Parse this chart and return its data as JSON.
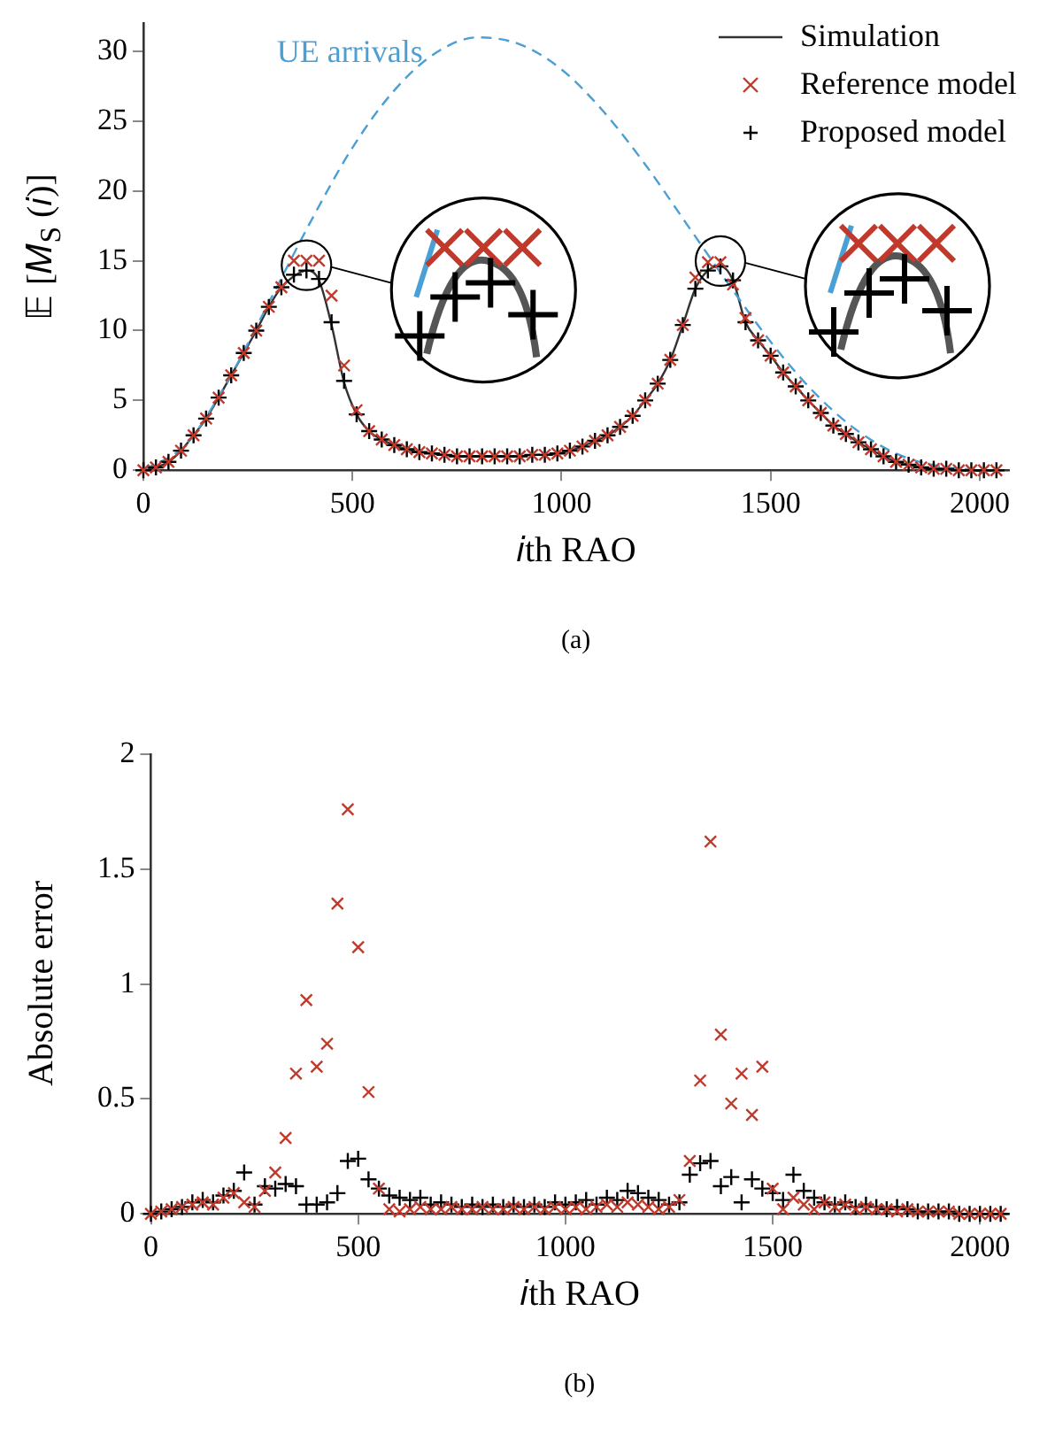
{
  "chart_data": [
    {
      "type": "line",
      "xlabel": "𝑖th RAO",
      "ylabel": "𝔼 [𝑀$_{S}$ (𝑖)]",
      "annotations": [
        "(a)"
      ],
      "x": [
        0,
        30,
        60,
        90,
        120,
        150,
        180,
        210,
        240,
        270,
        300,
        330,
        360,
        390,
        420,
        450,
        480,
        510,
        540,
        570,
        600,
        630,
        660,
        690,
        720,
        750,
        780,
        810,
        840,
        870,
        900,
        930,
        960,
        990,
        1020,
        1050,
        1080,
        1110,
        1140,
        1170,
        1200,
        1230,
        1260,
        1290,
        1320,
        1350,
        1380,
        1410,
        1440,
        1470,
        1500,
        1530,
        1560,
        1590,
        1620,
        1650,
        1680,
        1710,
        1740,
        1770,
        1800,
        1830,
        1860,
        1890,
        1920,
        1950,
        1980,
        2010,
        2040
      ],
      "series": [
        {
          "name": "UE arrivals",
          "type": "line",
          "color": "#4a9fd4",
          "line_style": "dashed",
          "x": [
            0,
            100,
            200,
            300,
            400,
            500,
            600,
            700,
            800,
            900,
            1000,
            1100,
            1200,
            1300,
            1400,
            1500,
            1600,
            1700,
            1800,
            1900,
            2000
          ],
          "values": [
            0,
            1.8,
            6.3,
            12.0,
            17.8,
            23.1,
            27.2,
            29.9,
            31.0,
            30.5,
            28.7,
            25.7,
            21.9,
            17.6,
            13.3,
            9.2,
            5.7,
            3.0,
            1.2,
            0.3,
            0
          ]
        },
        {
          "name": "Simulation",
          "type": "line",
          "color": "#333333",
          "line_style": "solid",
          "values": [
            0,
            0.2,
            0.6,
            1.4,
            2.5,
            3.7,
            5.2,
            6.8,
            8.4,
            10.0,
            11.7,
            13.1,
            13.9,
            14.3,
            13.6,
            10.4,
            6.3,
            4.0,
            2.8,
            2.2,
            1.8,
            1.5,
            1.3,
            1.2,
            1.1,
            1.0,
            1.0,
            1.0,
            1.0,
            1.0,
            1.0,
            1.1,
            1.1,
            1.2,
            1.4,
            1.7,
            2.1,
            2.5,
            3.1,
            3.9,
            5.0,
            6.2,
            7.9,
            10.4,
            13.0,
            14.3,
            14.6,
            13.6,
            10.6,
            9.3,
            8.2,
            7.0,
            6.0,
            5.0,
            4.1,
            3.2,
            2.6,
            2.0,
            1.5,
            1.0,
            0.6,
            0.4,
            0.2,
            0.1,
            0.1,
            0,
            0,
            0,
            0
          ]
        },
        {
          "name": "Reference model",
          "type": "scatter",
          "color": "#c0392b",
          "marker": "x",
          "values": [
            0,
            0.2,
            0.6,
            1.4,
            2.5,
            3.7,
            5.2,
            6.8,
            8.4,
            10.0,
            11.7,
            13.1,
            15.0,
            15.0,
            15.0,
            12.5,
            7.5,
            4.3,
            2.8,
            2.2,
            1.8,
            1.5,
            1.3,
            1.2,
            1.1,
            1.0,
            1.0,
            1.0,
            1.0,
            1.0,
            1.0,
            1.1,
            1.1,
            1.2,
            1.4,
            1.7,
            2.1,
            2.5,
            3.1,
            3.9,
            5.0,
            6.2,
            7.9,
            10.4,
            13.8,
            14.9,
            14.9,
            13.3,
            10.9,
            9.3,
            8.2,
            7.0,
            6.0,
            5.0,
            4.1,
            3.2,
            2.6,
            2.0,
            1.5,
            1.0,
            0.6,
            0.4,
            0.2,
            0.1,
            0.1,
            0,
            0,
            0,
            0
          ]
        },
        {
          "name": "Proposed model",
          "type": "scatter",
          "color": "#000000",
          "marker": "cross",
          "values": [
            0,
            0.2,
            0.6,
            1.4,
            2.5,
            3.7,
            5.2,
            6.8,
            8.4,
            10.0,
            11.7,
            13.1,
            14.0,
            14.3,
            13.7,
            10.6,
            6.4,
            4.0,
            2.8,
            2.2,
            1.8,
            1.5,
            1.3,
            1.2,
            1.1,
            1.0,
            1.0,
            1.0,
            1.0,
            1.0,
            1.0,
            1.1,
            1.1,
            1.2,
            1.4,
            1.7,
            2.1,
            2.5,
            3.1,
            3.9,
            5.0,
            6.2,
            7.9,
            10.4,
            13.0,
            14.3,
            14.6,
            13.6,
            10.6,
            9.3,
            8.2,
            7.0,
            6.0,
            5.0,
            4.1,
            3.2,
            2.6,
            2.0,
            1.5,
            1.0,
            0.6,
            0.4,
            0.2,
            0.1,
            0.1,
            0,
            0,
            0,
            0
          ]
        }
      ],
      "xlim": [
        0,
        2070
      ],
      "xticks": [
        0,
        500,
        1000,
        1500,
        2000
      ],
      "ylim": [
        0,
        32
      ],
      "yticks": [
        0,
        5,
        10,
        15,
        20,
        25,
        30
      ],
      "grid": false,
      "legend": "top right"
    },
    {
      "type": "scatter",
      "xlabel": "𝑖th RAO",
      "ylabel": "Absolute error",
      "annotations": [
        "(b)"
      ],
      "x": [
        0,
        25,
        50,
        75,
        100,
        125,
        150,
        175,
        200,
        225,
        250,
        275,
        300,
        325,
        350,
        375,
        400,
        425,
        450,
        475,
        500,
        525,
        550,
        575,
        600,
        625,
        650,
        675,
        700,
        725,
        750,
        775,
        800,
        825,
        850,
        875,
        900,
        925,
        950,
        975,
        1000,
        1025,
        1050,
        1075,
        1100,
        1125,
        1150,
        1175,
        1200,
        1225,
        1250,
        1275,
        1300,
        1325,
        1350,
        1375,
        1400,
        1425,
        1450,
        1475,
        1500,
        1525,
        1550,
        1575,
        1600,
        1625,
        1650,
        1675,
        1700,
        1725,
        1750,
        1775,
        1800,
        1825,
        1850,
        1875,
        1900,
        1925,
        1950,
        1975,
        2000,
        2025,
        2050
      ],
      "series": [
        {
          "color": "#c0392b",
          "marker": "x",
          "values": [
            0,
            0.01,
            0.02,
            0.03,
            0.04,
            0.05,
            0.04,
            0.07,
            0.09,
            0.05,
            0.03,
            0.1,
            0.18,
            0.33,
            0.61,
            0.93,
            0.64,
            0.74,
            1.35,
            1.76,
            1.16,
            0.53,
            0.11,
            0.02,
            0.01,
            0.02,
            0.03,
            0.02,
            0.02,
            0.03,
            0.02,
            0.02,
            0.03,
            0.02,
            0.02,
            0.03,
            0.02,
            0.03,
            0.02,
            0.03,
            0.02,
            0.03,
            0.02,
            0.03,
            0.04,
            0.03,
            0.05,
            0.04,
            0.03,
            0.02,
            0.03,
            0.06,
            0.23,
            0.58,
            1.62,
            0.78,
            0.48,
            0.61,
            0.43,
            0.64,
            0.11,
            0.02,
            0.07,
            0.04,
            0.02,
            0.05,
            0.03,
            0.04,
            0.02,
            0.03,
            0.02,
            0.02,
            0.01,
            0.02,
            0.01,
            0.01,
            0.01,
            0.01,
            0,
            0,
            0,
            0,
            0
          ]
        },
        {
          "color": "#000000",
          "marker": "cross",
          "values": [
            0,
            0.01,
            0.02,
            0.03,
            0.05,
            0.06,
            0.05,
            0.08,
            0.1,
            0.18,
            0.04,
            0.12,
            0.11,
            0.13,
            0.12,
            0.04,
            0.04,
            0.05,
            0.09,
            0.23,
            0.24,
            0.15,
            0.11,
            0.08,
            0.07,
            0.06,
            0.07,
            0.04,
            0.05,
            0.04,
            0.03,
            0.04,
            0.03,
            0.04,
            0.03,
            0.04,
            0.03,
            0.04,
            0.03,
            0.05,
            0.04,
            0.05,
            0.06,
            0.04,
            0.07,
            0.06,
            0.1,
            0.09,
            0.07,
            0.06,
            0.04,
            0.05,
            0.17,
            0.22,
            0.23,
            0.12,
            0.16,
            0.05,
            0.15,
            0.11,
            0.09,
            0.06,
            0.17,
            0.1,
            0.07,
            0.05,
            0.04,
            0.05,
            0.03,
            0.04,
            0.03,
            0.02,
            0.03,
            0.02,
            0.01,
            0.01,
            0.01,
            0.01,
            0,
            0,
            0,
            0,
            0
          ]
        }
      ],
      "xlim": [
        0,
        2070
      ],
      "xticks": [
        0,
        500,
        1000,
        1500,
        2000
      ],
      "ylim": [
        0,
        2
      ],
      "yticks": [
        0,
        0.5,
        1,
        1.5,
        2
      ],
      "grid": false
    }
  ]
}
